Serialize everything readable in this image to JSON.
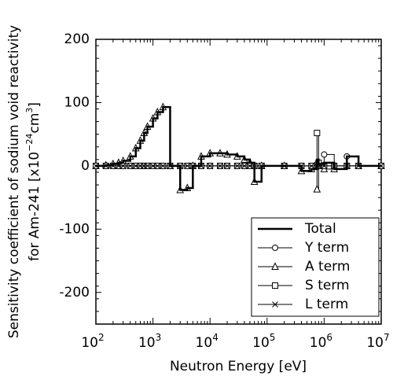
{
  "chart_data": {
    "type": "step",
    "xlabel": "Neutron Energy [eV]",
    "ylabel_line1": "Sensitivity coefficient of sodium void reactivity",
    "ylabel_line2": [
      {
        "text": "for Am-241 [x10"
      },
      {
        "text": "−24",
        "sup": true
      },
      {
        "text": "cm"
      },
      {
        "text": "3",
        "sup": true
      },
      {
        "text": "]"
      }
    ],
    "x": [
      100,
      150,
      200,
      250,
      300,
      400,
      500,
      600,
      700,
      800,
      1000,
      1200,
      1500,
      2000,
      3000,
      4000,
      5000,
      7000,
      10000,
      15000,
      20000,
      30000,
      40000,
      50000,
      60000,
      80000,
      200000,
      400000,
      600000,
      750000,
      800000,
      1000000,
      1500000,
      2500000,
      4000000,
      10000000
    ],
    "series": [
      {
        "name": "Total",
        "color": "#000000",
        "width": 2.5,
        "values": [
          0,
          1,
          3,
          5,
          8,
          15,
          28,
          40,
          52,
          62,
          75,
          85,
          93,
          0,
          -38,
          -35,
          0,
          15,
          20,
          20,
          18,
          15,
          10,
          5,
          -25,
          0,
          0,
          -8,
          -5,
          10,
          3,
          5,
          -5,
          15,
          0,
          0
        ]
      },
      {
        "name": "Y term",
        "color": "#000000",
        "width": 1,
        "marker": "circle",
        "values": [
          0,
          0,
          0,
          0,
          0,
          0,
          0,
          0,
          0,
          0,
          0,
          0,
          0,
          0,
          0,
          0,
          0,
          0,
          0,
          0,
          0,
          0,
          0,
          0,
          0,
          0,
          0,
          0,
          0,
          3,
          0,
          18,
          0,
          15,
          0,
          0
        ]
      },
      {
        "name": "A term",
        "color": "#000000",
        "width": 1,
        "marker": "triangle",
        "values": [
          0,
          1,
          3,
          5,
          8,
          15,
          28,
          40,
          52,
          62,
          75,
          85,
          93,
          0,
          -38,
          -35,
          0,
          15,
          20,
          20,
          18,
          15,
          10,
          5,
          -25,
          0,
          0,
          -8,
          -5,
          -37,
          0,
          -5,
          -5,
          0,
          0,
          0
        ]
      },
      {
        "name": "S term",
        "color": "#000000",
        "width": 1,
        "marker": "square",
        "values": [
          0,
          0,
          0,
          0,
          0,
          0,
          0,
          0,
          0,
          0,
          0,
          0,
          0,
          0,
          0,
          0,
          0,
          0,
          0,
          0,
          0,
          0,
          0,
          0,
          0,
          0,
          0,
          0,
          0,
          52,
          5,
          0,
          0,
          0,
          0,
          0
        ]
      },
      {
        "name": "L term",
        "color": "#000000",
        "width": 1,
        "marker": "x",
        "values": [
          0,
          0,
          0,
          0,
          0,
          0,
          0,
          0,
          0,
          0,
          0,
          0,
          0,
          0,
          0,
          0,
          0,
          0,
          0,
          0,
          0,
          0,
          0,
          0,
          0,
          0,
          0,
          0,
          0,
          0,
          0,
          0,
          0,
          0,
          0,
          0
        ]
      }
    ],
    "log_x": true,
    "xlim": [
      100,
      10000000
    ],
    "xticks": [
      {
        "value": 100,
        "label": "10",
        "sup": "2"
      },
      {
        "value": 1000,
        "label": "10",
        "sup": "3"
      },
      {
        "value": 10000,
        "label": "10",
        "sup": "4"
      },
      {
        "value": 100000,
        "label": "10",
        "sup": "5"
      },
      {
        "value": 1000000,
        "label": "10",
        "sup": "6"
      },
      {
        "value": 10000000,
        "label": "10",
        "sup": "7"
      }
    ],
    "ylim": [
      -250,
      200
    ],
    "yticks": [
      -200,
      -100,
      0,
      100,
      200
    ],
    "legend": "lower right"
  }
}
